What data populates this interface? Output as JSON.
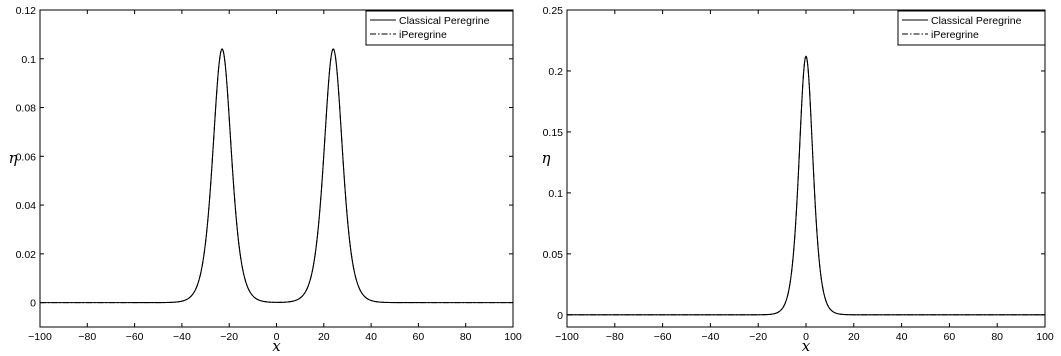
{
  "chart_data": [
    {
      "type": "line",
      "xlabel": "x",
      "ylabel": "η",
      "xlim": [
        -100,
        100
      ],
      "ylim": [
        -0.01,
        0.12
      ],
      "xticks": [
        -100,
        -80,
        -60,
        -40,
        -20,
        0,
        20,
        40,
        60,
        80,
        100
      ],
      "yticks": [
        0,
        0.02,
        0.04,
        0.06,
        0.08,
        0.1,
        0.12
      ],
      "ytick_labels": [
        "0",
        "0.02",
        "0.04",
        "0.06",
        "0.08",
        "0.1",
        "0.12"
      ],
      "legend_position": "top-right",
      "series": [
        {
          "name": "Classical Peregrine",
          "style": "solid",
          "color": "#000000",
          "peaks": [
            {
              "center": -23,
              "amplitude": 0.104,
              "width": 5.2
            },
            {
              "center": 24,
              "amplitude": 0.104,
              "width": 5.2
            }
          ]
        },
        {
          "name": "iPeregrine",
          "style": "dashdot",
          "color": "#000000",
          "peaks": [
            {
              "center": -23,
              "amplitude": 0.104,
              "width": 5.2
            },
            {
              "center": 24,
              "amplitude": 0.104,
              "width": 5.2
            }
          ]
        }
      ]
    },
    {
      "type": "line",
      "xlabel": "x",
      "ylabel": "η",
      "xlim": [
        -100,
        100
      ],
      "ylim": [
        -0.01,
        0.25
      ],
      "xticks": [
        -100,
        -80,
        -60,
        -40,
        -20,
        0,
        20,
        40,
        60,
        80,
        100
      ],
      "yticks": [
        0,
        0.05,
        0.1,
        0.15,
        0.2,
        0.25
      ],
      "ytick_labels": [
        "0",
        "0.05",
        "0.1",
        "0.15",
        "0.2",
        "0.25"
      ],
      "legend_position": "top-right",
      "series": [
        {
          "name": "Classical Peregrine",
          "style": "solid",
          "color": "#000000",
          "peaks": [
            {
              "center": 0,
              "amplitude": 0.212,
              "width": 3.9
            }
          ]
        },
        {
          "name": "iPeregrine",
          "style": "dashdot",
          "color": "#000000",
          "peaks": [
            {
              "center": 0,
              "amplitude": 0.212,
              "width": 3.9
            }
          ]
        }
      ]
    }
  ]
}
